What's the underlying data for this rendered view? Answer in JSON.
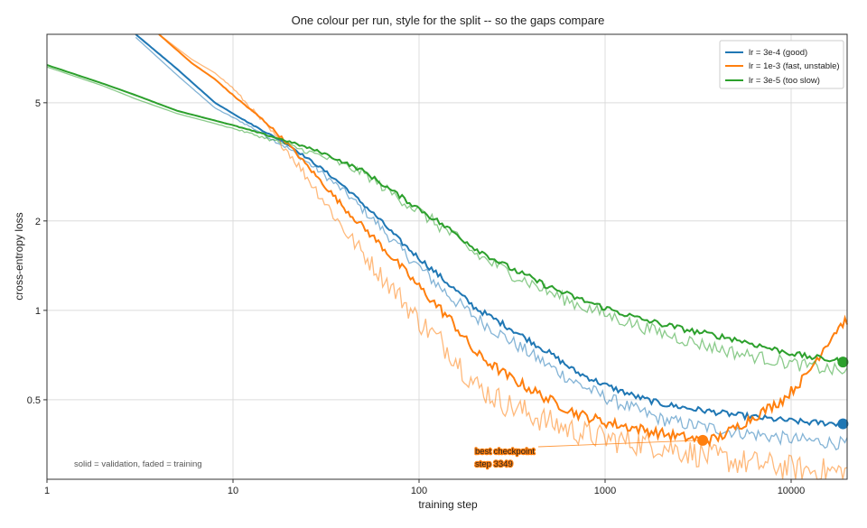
{
  "chart_data": {
    "type": "line",
    "title": "One colour per run, style for the split -- so the gaps compare",
    "xlabel": "training step",
    "ylabel": "cross-entropy loss",
    "xscale": "log",
    "yscale": "log",
    "xlim": [
      1,
      20000
    ],
    "ylim": [
      0.27,
      8.5
    ],
    "x_ticks": [
      {
        "v": 1,
        "label": "1"
      },
      {
        "v": 10,
        "label": "10"
      },
      {
        "v": 100,
        "label": "100"
      },
      {
        "v": 1000,
        "label": "1000"
      },
      {
        "v": 10000,
        "label": "10000"
      }
    ],
    "y_ticks": [
      {
        "v": 0.5,
        "label": "0.5"
      },
      {
        "v": 1,
        "label": "1"
      },
      {
        "v": 2,
        "label": "2"
      },
      {
        "v": 5,
        "label": "5"
      }
    ],
    "grid": true,
    "legend_position": "top-right",
    "series": [
      {
        "name": "lr = 3e-4 (good)",
        "color": "#1f77b4",
        "validation": [
          [
            3,
            8.5
          ],
          [
            5,
            6.5
          ],
          [
            8,
            5.0
          ],
          [
            12,
            4.3
          ],
          [
            20,
            3.6
          ],
          [
            30,
            3.0
          ],
          [
            40,
            2.6
          ],
          [
            60,
            2.05
          ],
          [
            80,
            1.7
          ],
          [
            100,
            1.5
          ],
          [
            150,
            1.2
          ],
          [
            200,
            1.02
          ],
          [
            300,
            0.88
          ],
          [
            500,
            0.72
          ],
          [
            700,
            0.62
          ],
          [
            1000,
            0.56
          ],
          [
            1500,
            0.51
          ],
          [
            2000,
            0.485
          ],
          [
            3000,
            0.465
          ],
          [
            5000,
            0.445
          ],
          [
            8000,
            0.43
          ],
          [
            12000,
            0.42
          ],
          [
            20000,
            0.415
          ]
        ],
        "training": [
          [
            3,
            8.3
          ],
          [
            5,
            6.2
          ],
          [
            8,
            4.8
          ],
          [
            12,
            4.2
          ],
          [
            20,
            3.5
          ],
          [
            30,
            2.9
          ],
          [
            40,
            2.5
          ],
          [
            60,
            1.95
          ],
          [
            80,
            1.6
          ],
          [
            100,
            1.4
          ],
          [
            150,
            1.1
          ],
          [
            200,
            0.95
          ],
          [
            300,
            0.8
          ],
          [
            500,
            0.65
          ],
          [
            700,
            0.57
          ],
          [
            1000,
            0.51
          ],
          [
            1500,
            0.46
          ],
          [
            2000,
            0.43
          ],
          [
            3000,
            0.41
          ],
          [
            5000,
            0.39
          ],
          [
            8000,
            0.375
          ],
          [
            12000,
            0.365
          ],
          [
            20000,
            0.355
          ]
        ],
        "end_marker": [
          19000,
          0.415
        ]
      },
      {
        "name": "lr = 1e-3 (fast, unstable)",
        "color": "#ff7f0e",
        "validation": [
          [
            4,
            8.5
          ],
          [
            6,
            6.8
          ],
          [
            8,
            6.0
          ],
          [
            10,
            5.3
          ],
          [
            15,
            4.3
          ],
          [
            20,
            3.6
          ],
          [
            30,
            2.7
          ],
          [
            40,
            2.2
          ],
          [
            60,
            1.7
          ],
          [
            80,
            1.4
          ],
          [
            100,
            1.2
          ],
          [
            150,
            0.92
          ],
          [
            200,
            0.72
          ],
          [
            300,
            0.6
          ],
          [
            500,
            0.5
          ],
          [
            700,
            0.45
          ],
          [
            1000,
            0.42
          ],
          [
            1500,
            0.4
          ],
          [
            2000,
            0.385
          ],
          [
            3349,
            0.365
          ],
          [
            4000,
            0.37
          ],
          [
            6000,
            0.43
          ],
          [
            9000,
            0.5
          ],
          [
            12000,
            0.6
          ],
          [
            15000,
            0.75
          ],
          [
            18000,
            0.88
          ],
          [
            20000,
            0.93
          ]
        ],
        "training": [
          [
            4,
            8.5
          ],
          [
            6,
            7.0
          ],
          [
            8,
            6.3
          ],
          [
            10,
            5.6
          ],
          [
            15,
            4.2
          ],
          [
            20,
            3.4
          ],
          [
            30,
            2.4
          ],
          [
            40,
            1.85
          ],
          [
            60,
            1.35
          ],
          [
            80,
            1.1
          ],
          [
            100,
            0.92
          ],
          [
            150,
            0.72
          ],
          [
            200,
            0.56
          ],
          [
            300,
            0.48
          ],
          [
            500,
            0.42
          ],
          [
            700,
            0.39
          ],
          [
            1000,
            0.37
          ],
          [
            2000,
            0.35
          ],
          [
            3000,
            0.33
          ],
          [
            5000,
            0.31
          ],
          [
            8000,
            0.3
          ],
          [
            12000,
            0.29
          ],
          [
            20000,
            0.285
          ]
        ],
        "end_marker": [
          3349,
          0.365
        ]
      },
      {
        "name": "lr = 3e-5 (too slow)",
        "color": "#2ca02c",
        "validation": [
          [
            1,
            6.7
          ],
          [
            2,
            5.8
          ],
          [
            3,
            5.3
          ],
          [
            5,
            4.7
          ],
          [
            10,
            4.2
          ],
          [
            20,
            3.7
          ],
          [
            30,
            3.4
          ],
          [
            50,
            2.95
          ],
          [
            70,
            2.55
          ],
          [
            100,
            2.2
          ],
          [
            150,
            1.85
          ],
          [
            200,
            1.62
          ],
          [
            300,
            1.4
          ],
          [
            500,
            1.2
          ],
          [
            700,
            1.1
          ],
          [
            1000,
            1.02
          ],
          [
            1500,
            0.94
          ],
          [
            2000,
            0.9
          ],
          [
            3000,
            0.85
          ],
          [
            5000,
            0.8
          ],
          [
            8000,
            0.74
          ],
          [
            12000,
            0.7
          ],
          [
            20000,
            0.67
          ]
        ],
        "training": [
          [
            1,
            6.6
          ],
          [
            2,
            5.7
          ],
          [
            3,
            5.15
          ],
          [
            5,
            4.6
          ],
          [
            10,
            4.1
          ],
          [
            20,
            3.6
          ],
          [
            30,
            3.3
          ],
          [
            50,
            2.9
          ],
          [
            70,
            2.5
          ],
          [
            100,
            2.15
          ],
          [
            150,
            1.8
          ],
          [
            200,
            1.55
          ],
          [
            300,
            1.35
          ],
          [
            500,
            1.15
          ],
          [
            700,
            1.05
          ],
          [
            1000,
            0.97
          ],
          [
            1500,
            0.89
          ],
          [
            2000,
            0.84
          ],
          [
            3000,
            0.78
          ],
          [
            5000,
            0.72
          ],
          [
            8000,
            0.68
          ],
          [
            12000,
            0.65
          ],
          [
            20000,
            0.62
          ]
        ],
        "end_marker": [
          19000,
          0.67
        ]
      }
    ],
    "annotations": {
      "best_checkpoint_line1": "best checkpoint",
      "best_checkpoint_line2": "step 3349",
      "style_note": "solid = validation, faded = training"
    }
  }
}
